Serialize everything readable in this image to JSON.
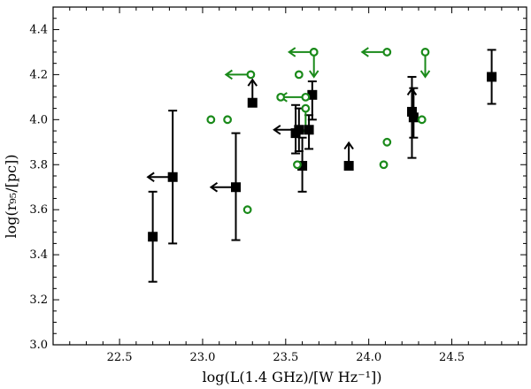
{
  "chart_data": {
    "type": "scatter",
    "title": "",
    "xlabel": "log(L(1.4 GHz)/[W Hz⁻¹])",
    "ylabel": "log(r₉₅/[pc])",
    "xlim": [
      22.1,
      24.95
    ],
    "ylim": [
      3.0,
      4.5
    ],
    "x_ticks": [
      22.5,
      23.0,
      23.5,
      24.0,
      24.5
    ],
    "y_ticks": [
      3.0,
      3.2,
      3.4,
      3.6,
      3.8,
      4.0,
      4.2,
      4.4
    ],
    "x_tick_labels": [
      "22.5",
      "23.0",
      "23.5",
      "24.0",
      "24.5"
    ],
    "y_tick_labels": [
      "3.0",
      "3.2",
      "3.4",
      "3.6",
      "3.8",
      "4.0",
      "4.2",
      "4.4"
    ],
    "grid": false,
    "legend": null,
    "series": [
      {
        "marker": "square-filled",
        "color": "#000000",
        "points": [
          {
            "x": 22.7,
            "y": 3.48,
            "yerr": [
              3.28,
              3.68
            ],
            "limit": null
          },
          {
            "x": 22.82,
            "y": 3.745,
            "yerr": [
              3.45,
              4.04
            ],
            "limit": "left"
          },
          {
            "x": 23.2,
            "y": 3.7,
            "yerr": [
              3.465,
              3.94
            ],
            "limit": "left"
          },
          {
            "x": 23.3,
            "y": 4.075,
            "yerr": null,
            "limit": "up"
          },
          {
            "x": 23.56,
            "y": 3.94,
            "yerr": [
              3.85,
              4.065
            ],
            "limit": null
          },
          {
            "x": 23.58,
            "y": 3.955,
            "yerr": [
              3.86,
              4.05
            ],
            "limit": "left"
          },
          {
            "x": 23.6,
            "y": 3.795,
            "yerr": [
              3.68,
              3.92
            ],
            "limit": null
          },
          {
            "x": 23.64,
            "y": 3.955,
            "yerr": [
              3.87,
              4.02
            ],
            "limit": null
          },
          {
            "x": 23.66,
            "y": 4.11,
            "yerr": [
              4.0,
              4.17
            ],
            "limit": null
          },
          {
            "x": 23.88,
            "y": 3.795,
            "yerr": null,
            "limit": "up"
          },
          {
            "x": 24.26,
            "y": 4.035,
            "yerr": [
              3.83,
              4.19
            ],
            "limit": "up"
          },
          {
            "x": 24.27,
            "y": 4.01,
            "yerr": [
              3.92,
              4.14
            ],
            "limit": null
          },
          {
            "x": 24.74,
            "y": 4.19,
            "yerr": [
              4.07,
              4.31
            ],
            "limit": null
          }
        ]
      },
      {
        "marker": "circle-open",
        "color": "#1a8a1a",
        "points": [
          {
            "x": 23.05,
            "y": 4.0,
            "limit": null
          },
          {
            "x": 23.15,
            "y": 4.0,
            "limit": null
          },
          {
            "x": 23.27,
            "y": 3.6,
            "limit": null
          },
          {
            "x": 23.29,
            "y": 4.2,
            "limit": "left"
          },
          {
            "x": 23.47,
            "y": 4.1,
            "limit": null
          },
          {
            "x": 23.57,
            "y": 3.8,
            "limit": null
          },
          {
            "x": 23.58,
            "y": 4.2,
            "limit": null
          },
          {
            "x": 23.62,
            "y": 4.1,
            "limit": "left"
          },
          {
            "x": 23.62,
            "y": 4.05,
            "limit": "down"
          },
          {
            "x": 23.67,
            "y": 4.3,
            "limit": "left"
          },
          {
            "x": 23.67,
            "y": 4.3,
            "limit": "down"
          },
          {
            "x": 24.09,
            "y": 3.8,
            "limit": null
          },
          {
            "x": 24.11,
            "y": 3.9,
            "limit": null
          },
          {
            "x": 24.11,
            "y": 4.3,
            "limit": "left"
          },
          {
            "x": 24.32,
            "y": 4.0,
            "limit": null
          },
          {
            "x": 24.34,
            "y": 4.3,
            "limit": "down"
          }
        ]
      }
    ]
  }
}
